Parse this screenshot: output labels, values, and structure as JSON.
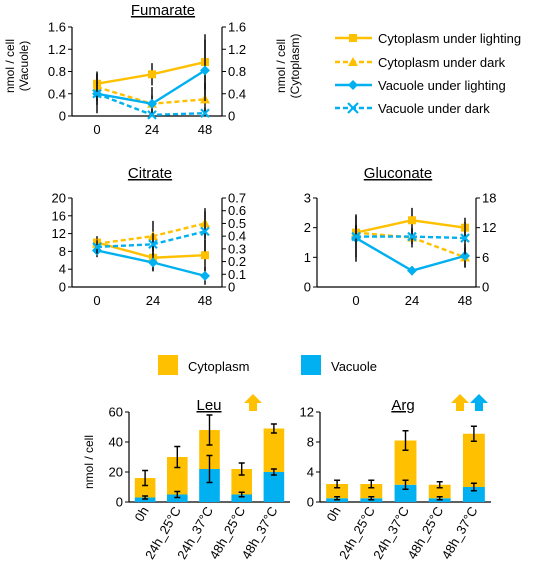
{
  "colors": {
    "cytoplasm": "#FFC000",
    "vacuole": "#00B0F0",
    "error": "#000000",
    "axis": "#000000"
  },
  "legend": {
    "cytoplasm_light": "Cytoplasm under lighting",
    "cytoplasm_dark": "Cytoplasm under dark",
    "vacuole_light": "Vacuole under lighting",
    "vacuole_dark": "Vacuole under dark"
  },
  "bar_legend": {
    "cytoplasm": "Cytoplasm",
    "vacuole": "Vacuole"
  },
  "chart_data": [
    {
      "id": "fumarate",
      "type": "line",
      "title": "Fumarate",
      "x": [
        0,
        24,
        48
      ],
      "ylabel": "nmol / cell\n(Vacuole)",
      "ylabel_right": "nmol / cell\n(Cytoplasm)",
      "ylim": [
        0,
        1.6
      ],
      "yticks": [
        "0",
        "0.4",
        "0.8",
        "1.2",
        "1.6"
      ],
      "ylim_right": [
        0,
        1.6
      ],
      "yticks_right": [
        "0",
        "0.4",
        "0.8",
        "1.2",
        "1.6"
      ],
      "series": [
        {
          "name": "Cytoplasm under lighting",
          "axis": "right",
          "values": [
            0.58,
            0.75,
            0.97
          ],
          "errors": [
            0.22,
            0.2,
            0.5
          ]
        },
        {
          "name": "Cytoplasm under dark",
          "axis": "right",
          "values": [
            0.52,
            0.22,
            0.3
          ],
          "errors": [
            0.25,
            0.15,
            0.3
          ]
        },
        {
          "name": "Vacuole under lighting",
          "axis": "left",
          "values": [
            0.4,
            0.22,
            0.82
          ],
          "errors": [
            0.35,
            0.3,
            0.55
          ]
        },
        {
          "name": "Vacuole under dark",
          "axis": "left",
          "values": [
            0.4,
            0.02,
            0.05
          ],
          "errors": [
            0.2,
            0.05,
            0.1
          ]
        }
      ]
    },
    {
      "id": "citrate",
      "type": "line",
      "title": "Citrate",
      "x": [
        0,
        24,
        48
      ],
      "ylim": [
        0,
        20
      ],
      "yticks": [
        "0",
        "4",
        "8",
        "12",
        "16",
        "20"
      ],
      "ylim_right": [
        0,
        0.7
      ],
      "yticks_right": [
        "0",
        "0.1",
        "0.2",
        "0.3",
        "0.4",
        "0.5",
        "0.6",
        "0.7"
      ],
      "series": [
        {
          "name": "Cytoplasm under lighting",
          "axis": "right",
          "values": [
            0.35,
            0.23,
            0.25
          ],
          "errors": [
            0.05,
            0.1,
            0.12
          ]
        },
        {
          "name": "Cytoplasm under dark",
          "axis": "right",
          "values": [
            0.34,
            0.4,
            0.5
          ],
          "errors": [
            0.04,
            0.12,
            0.12
          ]
        },
        {
          "name": "Vacuole under lighting",
          "axis": "left",
          "values": [
            8.2,
            5.5,
            2.5
          ],
          "errors": [
            1.5,
            2.0,
            2.0
          ]
        },
        {
          "name": "Vacuole under dark",
          "axis": "left",
          "values": [
            9.0,
            9.6,
            12.5
          ],
          "errors": [
            1.5,
            2.5,
            4.5
          ]
        }
      ]
    },
    {
      "id": "gluconate",
      "type": "line",
      "title": "Gluconate",
      "x": [
        0,
        24,
        48
      ],
      "ylim": [
        0,
        3
      ],
      "yticks": [
        "0",
        "1",
        "2",
        "3"
      ],
      "ylim_right": [
        0,
        18
      ],
      "yticks_right": [
        "0",
        "6",
        "12",
        "18"
      ],
      "series": [
        {
          "name": "Cytoplasm under lighting",
          "axis": "right",
          "values": [
            11,
            13.5,
            12
          ],
          "errors": [
            1.5,
            2.5,
            2.0
          ]
        },
        {
          "name": "Cytoplasm under dark",
          "axis": "right",
          "values": [
            11,
            10,
            6
          ],
          "errors": [
            1.5,
            2.0,
            2.0
          ]
        },
        {
          "name": "Vacuole under lighting",
          "axis": "left",
          "values": [
            1.65,
            0.55,
            1.05
          ],
          "errors": [
            0.8,
            0.15,
            0.4
          ]
        },
        {
          "name": "Vacuole under dark",
          "axis": "left",
          "values": [
            1.7,
            1.7,
            1.65
          ],
          "errors": [
            0.7,
            0.25,
            0.55
          ]
        }
      ]
    },
    {
      "id": "leu",
      "type": "bar",
      "title": "Leu",
      "ylabel": "nmol / cell",
      "categories": [
        "0h",
        "24h_25°C",
        "24h_37°C",
        "48h_25°C",
        "48h_37°C"
      ],
      "ylim": [
        0,
        60
      ],
      "yticks": [
        "0",
        "20",
        "40",
        "60"
      ],
      "series": [
        {
          "name": "Vacuole",
          "values": [
            3,
            5,
            22,
            5,
            20
          ],
          "errors": [
            1,
            2,
            9,
            1.5,
            2
          ]
        },
        {
          "name": "Cytoplasm",
          "values": [
            13,
            25,
            26,
            17,
            29
          ],
          "errors": [
            5,
            7,
            10,
            4,
            3
          ]
        }
      ],
      "arrows": [
        "cytoplasm"
      ]
    },
    {
      "id": "arg",
      "type": "bar",
      "title": "Arg",
      "categories": [
        "0h",
        "24h_25°C",
        "24h_37°C",
        "48h_25°C",
        "48h_37°C"
      ],
      "ylim": [
        0,
        12
      ],
      "yticks": [
        "0",
        "4",
        "8",
        "12"
      ],
      "series": [
        {
          "name": "Vacuole",
          "values": [
            0.5,
            0.5,
            2.3,
            0.5,
            2.0
          ],
          "errors": [
            0.2,
            0.2,
            0.6,
            0.2,
            0.5
          ]
        },
        {
          "name": "Cytoplasm",
          "values": [
            1.9,
            1.9,
            5.9,
            1.8,
            7.1
          ],
          "errors": [
            0.5,
            0.5,
            1.3,
            0.4,
            1.0
          ]
        }
      ],
      "arrows": [
        "cytoplasm",
        "vacuole"
      ]
    }
  ]
}
